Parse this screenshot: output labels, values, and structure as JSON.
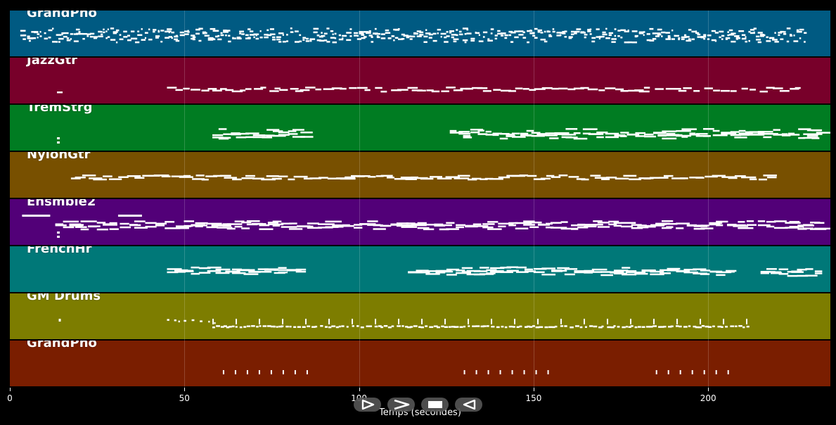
{
  "tracks": [
    {
      "name": "GrandPno",
      "color": "#005a82",
      "pattern": "dense"
    },
    {
      "name": "JazzGtr",
      "color": "#78002a",
      "pattern": "melodic"
    },
    {
      "name": "TremStrg",
      "color": "#007c22",
      "pattern": "chords"
    },
    {
      "name": "NylonGtr",
      "color": "#785000",
      "pattern": "single"
    },
    {
      "name": "Ensmble2",
      "color": "#520078",
      "pattern": "chords"
    },
    {
      "name": "FrenchHr",
      "color": "#007878",
      "pattern": "sections"
    },
    {
      "name": "GM Drums",
      "color": "#7d7d00",
      "pattern": "drums"
    },
    {
      "name": "GrandPno",
      "color": "#7a1e00",
      "pattern": "sparse"
    }
  ],
  "axis": {
    "xlabel": "Temps (secondes)",
    "xlim": [
      0,
      235
    ],
    "ticks": [
      {
        "value": 0,
        "label": "0"
      },
      {
        "value": 50,
        "label": "50"
      },
      {
        "value": 100,
        "label": "100"
      },
      {
        "value": 150,
        "label": "150"
      },
      {
        "value": 200,
        "label": "200"
      }
    ]
  },
  "controls": [
    {
      "name": "play-button",
      "icon": "play-icon"
    },
    {
      "name": "fast-forward-button",
      "icon": "fast-forward-icon"
    },
    {
      "name": "stop-button",
      "icon": "stop-icon"
    },
    {
      "name": "rewind-button",
      "icon": "rewind-icon"
    }
  ],
  "note_color": "#ffffff"
}
